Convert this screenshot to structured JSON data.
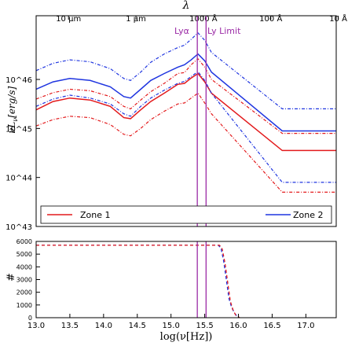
{
  "chart_data": [
    {
      "type": "line",
      "top_axis_label": "λ",
      "top_ticks": [
        {
          "x": 13.48,
          "label": "10 μm"
        },
        {
          "x": 14.48,
          "label": "1 μm"
        },
        {
          "x": 15.48,
          "label": "1000 Å"
        },
        {
          "x": 16.48,
          "label": "100 Å"
        },
        {
          "x": 17.48,
          "label": "10 Å"
        }
      ],
      "ylabel": "νL_ν[erg/s]",
      "ylim_log10": [
        43,
        47.3
      ],
      "xlim": [
        13.0,
        17.45
      ],
      "y_ticks": [
        {
          "v": 43,
          "label": "10^43"
        },
        {
          "v": 44,
          "label": "10^44"
        },
        {
          "v": 45,
          "label": "10^45"
        },
        {
          "v": 46,
          "label": "10^46"
        }
      ],
      "vlines": [
        {
          "x": 15.39,
          "label": "Lyα"
        },
        {
          "x": 15.52,
          "label": "Ly Limit"
        }
      ],
      "colors": {
        "zone1": "#e31a1c",
        "zone2": "#1f35e0",
        "vline": "#9b2aa6"
      },
      "series": [
        {
          "name": "Zone 1",
          "style": "solid",
          "color": "zone1",
          "x": [
            13.0,
            13.25,
            13.5,
            13.8,
            14.1,
            14.3,
            14.4,
            14.55,
            14.7,
            14.9,
            15.1,
            15.2,
            15.3,
            15.4,
            15.5,
            15.6,
            16.65,
            17.45
          ],
          "y": [
            45.38,
            45.55,
            45.62,
            45.58,
            45.45,
            45.22,
            45.2,
            45.38,
            45.55,
            45.72,
            45.9,
            45.92,
            46.03,
            46.12,
            45.95,
            45.72,
            44.55,
            44.55
          ]
        },
        {
          "style": "dashdot",
          "color": "zone1",
          "x": [
            13.0,
            13.25,
            13.5,
            13.8,
            14.1,
            14.3,
            14.4,
            14.55,
            14.7,
            14.9,
            15.1,
            15.2,
            15.3,
            15.4,
            15.5,
            15.6,
            16.65,
            17.45
          ],
          "y": [
            45.6,
            45.73,
            45.8,
            45.77,
            45.65,
            45.45,
            45.4,
            45.58,
            45.75,
            45.92,
            46.12,
            46.14,
            46.3,
            46.42,
            46.25,
            46.0,
            44.9,
            44.9
          ]
        },
        {
          "style": "dashdot",
          "color": "zone1",
          "x": [
            13.0,
            13.25,
            13.5,
            13.8,
            14.1,
            14.3,
            14.4,
            14.55,
            14.7,
            14.9,
            15.1,
            15.2,
            15.3,
            15.4,
            15.5,
            15.6,
            16.65,
            17.45
          ],
          "y": [
            45.05,
            45.18,
            45.25,
            45.22,
            45.08,
            44.88,
            44.85,
            45.0,
            45.18,
            45.35,
            45.5,
            45.52,
            45.62,
            45.72,
            45.52,
            45.3,
            43.7,
            43.7
          ]
        },
        {
          "name": "Zone 2",
          "style": "solid",
          "color": "zone2",
          "x": [
            13.0,
            13.25,
            13.5,
            13.8,
            14.1,
            14.3,
            14.4,
            14.55,
            14.7,
            14.9,
            15.1,
            15.2,
            15.3,
            15.4,
            15.5,
            15.6,
            16.65,
            17.45
          ],
          "y": [
            45.8,
            45.95,
            46.02,
            45.98,
            45.85,
            45.65,
            45.62,
            45.8,
            45.98,
            46.12,
            46.25,
            46.3,
            46.4,
            46.52,
            46.38,
            46.15,
            44.95,
            44.95
          ]
        },
        {
          "style": "dashdot",
          "color": "zone2",
          "x": [
            13.0,
            13.25,
            13.5,
            13.8,
            14.1,
            14.3,
            14.4,
            14.55,
            14.7,
            14.9,
            15.1,
            15.2,
            15.3,
            15.4,
            15.5,
            15.6,
            16.65,
            17.45
          ],
          "y": [
            46.18,
            46.33,
            46.4,
            46.36,
            46.22,
            46.02,
            45.98,
            46.15,
            46.35,
            46.52,
            46.65,
            46.7,
            46.82,
            46.95,
            46.8,
            46.55,
            45.4,
            45.4
          ]
        },
        {
          "style": "dashdot",
          "color": "zone2",
          "x": [
            13.0,
            13.25,
            13.5,
            13.8,
            14.1,
            14.3,
            14.4,
            14.55,
            14.7,
            14.9,
            15.1,
            15.2,
            15.3,
            15.4,
            15.5,
            15.6,
            16.65,
            17.45
          ],
          "y": [
            45.45,
            45.6,
            45.68,
            45.62,
            45.5,
            45.3,
            45.25,
            45.45,
            45.62,
            45.78,
            45.92,
            45.96,
            46.06,
            46.16,
            45.98,
            45.72,
            43.9,
            43.9
          ]
        }
      ],
      "legend": {
        "placement": "bottom",
        "entries": [
          {
            "label": "Zone 1",
            "color": "zone1"
          },
          {
            "label": "Zone 2",
            "color": "zone2"
          }
        ]
      }
    },
    {
      "type": "line",
      "xlabel": "log(ν[Hz])",
      "ylabel": "#",
      "xlim": [
        13.0,
        17.45
      ],
      "ylim": [
        0,
        6000
      ],
      "x_ticks": [
        "13.0",
        "13.5",
        "14.0",
        "14.5",
        "15.0",
        "15.5",
        "16.0",
        "16.5",
        "17.0"
      ],
      "y_ticks": [
        "0",
        "1000",
        "2000",
        "3000",
        "4000",
        "5000",
        "6000"
      ],
      "series": [
        {
          "style": "dashed",
          "color": "zone2",
          "x": [
            13.0,
            15.7,
            15.74,
            15.78,
            15.82,
            15.86,
            15.9,
            15.95,
            16.0
          ],
          "y": [
            5700,
            5700,
            5500,
            4500,
            3000,
            1500,
            800,
            300,
            0
          ]
        },
        {
          "style": "dashed",
          "color": "zone1",
          "x": [
            13.0,
            15.72,
            15.76,
            15.8,
            15.84,
            15.88,
            15.92,
            15.96,
            16.02
          ],
          "y": [
            5700,
            5700,
            5400,
            4300,
            2800,
            1300,
            600,
            200,
            0
          ]
        }
      ]
    }
  ]
}
